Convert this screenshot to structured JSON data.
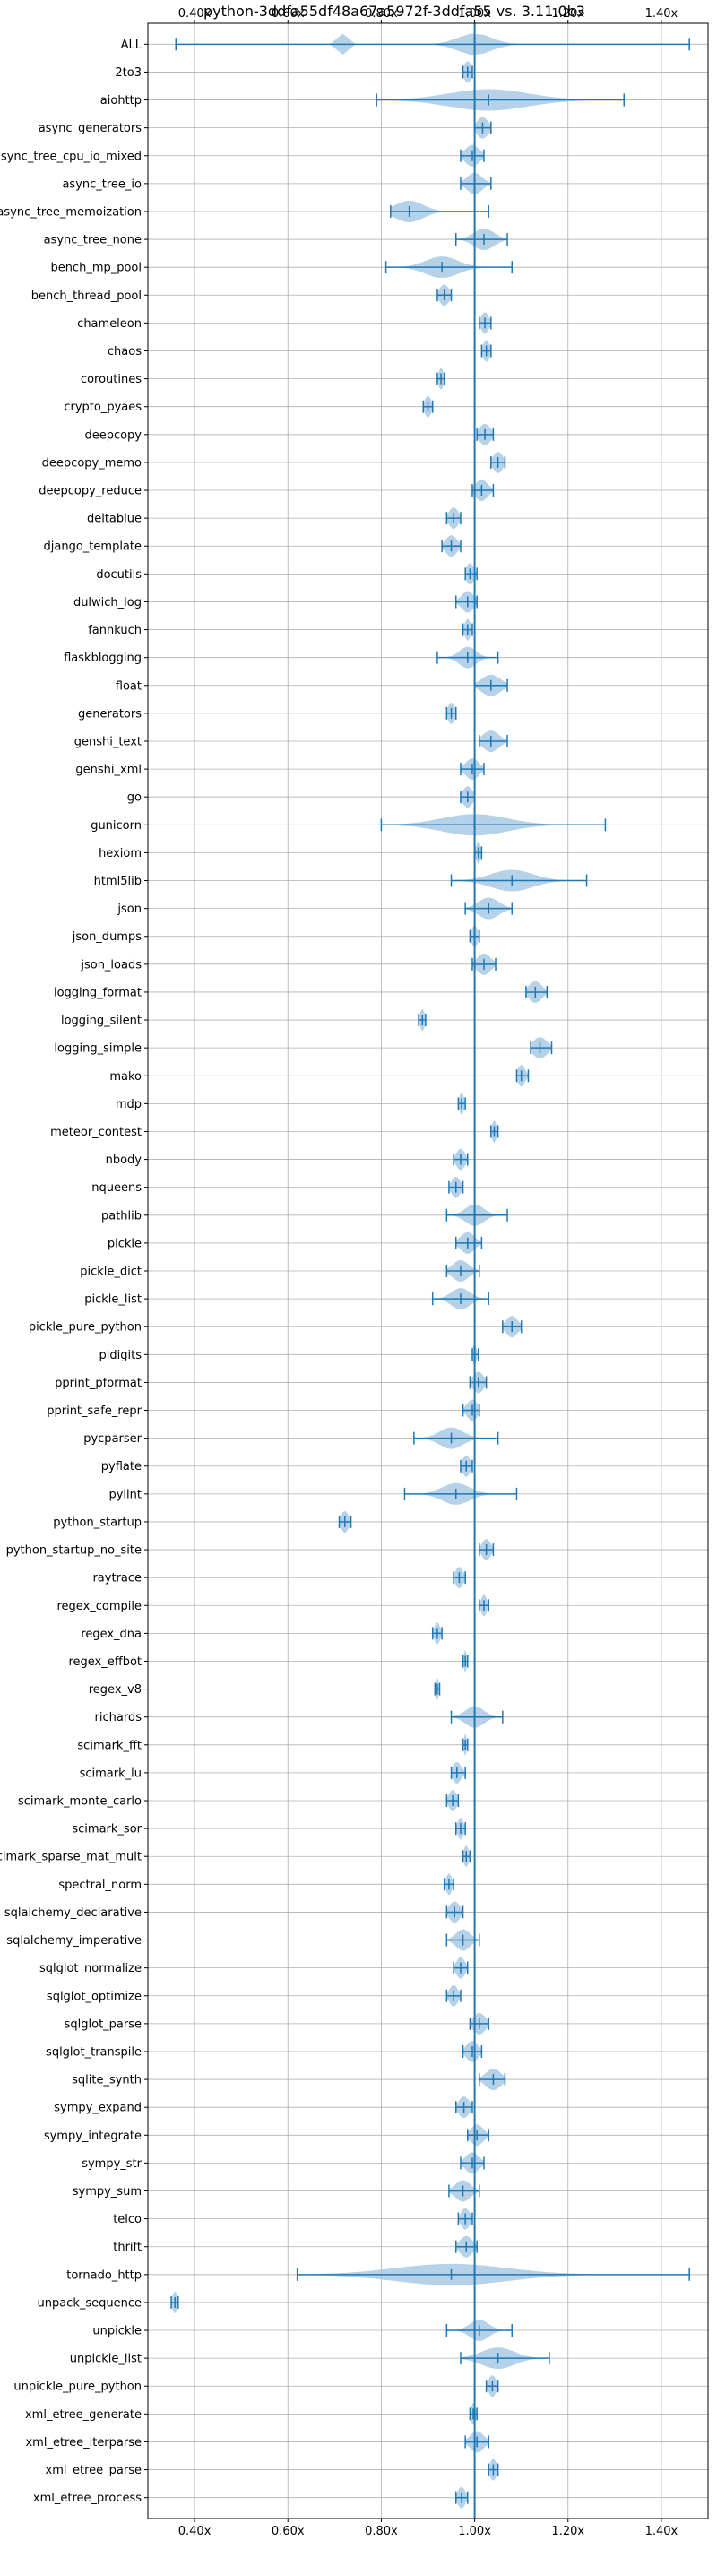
{
  "chart_data": {
    "type": "violin",
    "title": "python-3ddfa55df48a67a5972f-3ddfa55 vs. 3.11.0b3",
    "xlabel": "",
    "ylabel": "",
    "xlim": [
      0.3,
      1.5
    ],
    "x_ticks": [
      0.4,
      0.6,
      0.8,
      1.0,
      1.2,
      1.4
    ],
    "x_tick_labels": [
      "0.40x",
      "0.60x",
      "0.80x",
      "1.00x",
      "1.20x",
      "1.40x"
    ],
    "tick_axes": [
      "top",
      "bottom"
    ],
    "reference_line": 1.0,
    "grid": true,
    "colors": {
      "violin": "#9ec3e2",
      "line": "#1f77b4",
      "grid": "#b0b0b0"
    },
    "benchmarks": [
      {
        "name": "ALL",
        "min": 0.36,
        "max": 1.46,
        "median": 1.0,
        "spread": 0.025,
        "multi": [
          [
            0.72,
            0.008
          ],
          [
            1.0,
            0.035
          ]
        ]
      },
      {
        "name": "2to3",
        "min": 0.975,
        "max": 0.995,
        "median": 0.985,
        "spread": 0.008
      },
      {
        "name": "aiohttp",
        "min": 0.79,
        "max": 1.32,
        "median": 1.03,
        "spread": 0.085
      },
      {
        "name": "async_generators",
        "min": 1.0,
        "max": 1.035,
        "median": 1.017,
        "spread": 0.012
      },
      {
        "name": "async_tree_cpu_io_mixed",
        "min": 0.97,
        "max": 1.02,
        "median": 0.995,
        "spread": 0.015
      },
      {
        "name": "async_tree_io",
        "min": 0.97,
        "max": 1.035,
        "median": 1.0,
        "spread": 0.016
      },
      {
        "name": "async_tree_memoization",
        "min": 0.82,
        "max": 1.03,
        "median": 0.86,
        "spread": 0.03
      },
      {
        "name": "async_tree_none",
        "min": 0.96,
        "max": 1.07,
        "median": 1.02,
        "spread": 0.022
      },
      {
        "name": "bench_mp_pool",
        "min": 0.81,
        "max": 1.08,
        "median": 0.93,
        "spread": 0.035
      },
      {
        "name": "bench_thread_pool",
        "min": 0.92,
        "max": 0.95,
        "median": 0.935,
        "spread": 0.01
      },
      {
        "name": "chameleon",
        "min": 1.01,
        "max": 1.035,
        "median": 1.022,
        "spread": 0.008
      },
      {
        "name": "chaos",
        "min": 1.015,
        "max": 1.035,
        "median": 1.025,
        "spread": 0.007
      },
      {
        "name": "coroutines",
        "min": 0.92,
        "max": 0.935,
        "median": 0.928,
        "spread": 0.005
      },
      {
        "name": "crypto_pyaes",
        "min": 0.89,
        "max": 0.91,
        "median": 0.9,
        "spread": 0.007
      },
      {
        "name": "deepcopy",
        "min": 1.005,
        "max": 1.04,
        "median": 1.022,
        "spread": 0.012
      },
      {
        "name": "deepcopy_memo",
        "min": 1.035,
        "max": 1.065,
        "median": 1.05,
        "spread": 0.01
      },
      {
        "name": "deepcopy_reduce",
        "min": 0.995,
        "max": 1.04,
        "median": 1.015,
        "spread": 0.013
      },
      {
        "name": "deltablue",
        "min": 0.94,
        "max": 0.97,
        "median": 0.955,
        "spread": 0.01
      },
      {
        "name": "django_template",
        "min": 0.93,
        "max": 0.97,
        "median": 0.95,
        "spread": 0.012
      },
      {
        "name": "docutils",
        "min": 0.98,
        "max": 1.005,
        "median": 0.99,
        "spread": 0.008
      },
      {
        "name": "dulwich_log",
        "min": 0.96,
        "max": 1.005,
        "median": 0.985,
        "spread": 0.013
      },
      {
        "name": "fannkuch",
        "min": 0.975,
        "max": 0.995,
        "median": 0.985,
        "spread": 0.006
      },
      {
        "name": "flaskblogging",
        "min": 0.92,
        "max": 1.05,
        "median": 0.985,
        "spread": 0.018
      },
      {
        "name": "float",
        "min": 1.0,
        "max": 1.07,
        "median": 1.035,
        "spread": 0.02
      },
      {
        "name": "generators",
        "min": 0.94,
        "max": 0.96,
        "median": 0.95,
        "spread": 0.007
      },
      {
        "name": "genshi_text",
        "min": 1.01,
        "max": 1.07,
        "median": 1.035,
        "spread": 0.017
      },
      {
        "name": "genshi_xml",
        "min": 0.97,
        "max": 1.02,
        "median": 0.995,
        "spread": 0.014
      },
      {
        "name": "go",
        "min": 0.97,
        "max": 1.0,
        "median": 0.985,
        "spread": 0.01
      },
      {
        "name": "gunicorn",
        "min": 0.8,
        "max": 1.28,
        "median": 1.0,
        "spread": 0.07
      },
      {
        "name": "hexiom",
        "min": 1.0,
        "max": 1.015,
        "median": 1.008,
        "spread": 0.005
      },
      {
        "name": "html5lib",
        "min": 0.95,
        "max": 1.24,
        "median": 1.08,
        "spread": 0.045
      },
      {
        "name": "json",
        "min": 0.98,
        "max": 1.08,
        "median": 1.03,
        "spread": 0.022
      },
      {
        "name": "json_dumps",
        "min": 0.99,
        "max": 1.01,
        "median": 1.0,
        "spread": 0.007
      },
      {
        "name": "json_loads",
        "min": 0.995,
        "max": 1.045,
        "median": 1.02,
        "spread": 0.014
      },
      {
        "name": "logging_format",
        "min": 1.11,
        "max": 1.155,
        "median": 1.13,
        "spread": 0.014
      },
      {
        "name": "logging_silent",
        "min": 0.88,
        "max": 0.895,
        "median": 0.888,
        "spread": 0.005
      },
      {
        "name": "logging_simple",
        "min": 1.12,
        "max": 1.165,
        "median": 1.14,
        "spread": 0.015
      },
      {
        "name": "mako",
        "min": 1.09,
        "max": 1.115,
        "median": 1.1,
        "spread": 0.008
      },
      {
        "name": "mdp",
        "min": 0.965,
        "max": 0.98,
        "median": 0.972,
        "spread": 0.005
      },
      {
        "name": "meteor_contest",
        "min": 1.035,
        "max": 1.05,
        "median": 1.042,
        "spread": 0.005
      },
      {
        "name": "nbody",
        "min": 0.955,
        "max": 0.985,
        "median": 0.97,
        "spread": 0.009
      },
      {
        "name": "nqueens",
        "min": 0.945,
        "max": 0.975,
        "median": 0.96,
        "spread": 0.009
      },
      {
        "name": "pathlib",
        "min": 0.94,
        "max": 1.07,
        "median": 1.0,
        "spread": 0.02
      },
      {
        "name": "pickle",
        "min": 0.96,
        "max": 1.015,
        "median": 0.985,
        "spread": 0.015
      },
      {
        "name": "pickle_dict",
        "min": 0.94,
        "max": 1.01,
        "median": 0.97,
        "spread": 0.017
      },
      {
        "name": "pickle_list",
        "min": 0.91,
        "max": 1.03,
        "median": 0.97,
        "spread": 0.02
      },
      {
        "name": "pickle_pure_python",
        "min": 1.06,
        "max": 1.1,
        "median": 1.08,
        "spread": 0.012
      },
      {
        "name": "pidigits",
        "min": 0.995,
        "max": 1.008,
        "median": 1.0,
        "spread": 0.004
      },
      {
        "name": "pprint_pformat",
        "min": 0.99,
        "max": 1.025,
        "median": 1.008,
        "spread": 0.011
      },
      {
        "name": "pprint_safe_repr",
        "min": 0.975,
        "max": 1.01,
        "median": 0.995,
        "spread": 0.011
      },
      {
        "name": "pycparser",
        "min": 0.87,
        "max": 1.05,
        "median": 0.95,
        "spread": 0.025
      },
      {
        "name": "pyflate",
        "min": 0.97,
        "max": 0.995,
        "median": 0.982,
        "spread": 0.008
      },
      {
        "name": "pylint",
        "min": 0.85,
        "max": 1.09,
        "median": 0.96,
        "spread": 0.03
      },
      {
        "name": "python_startup",
        "min": 0.71,
        "max": 0.735,
        "median": 0.722,
        "spread": 0.008
      },
      {
        "name": "python_startup_no_site",
        "min": 1.01,
        "max": 1.04,
        "median": 1.025,
        "spread": 0.009
      },
      {
        "name": "raytrace",
        "min": 0.955,
        "max": 0.98,
        "median": 0.967,
        "spread": 0.008
      },
      {
        "name": "regex_compile",
        "min": 1.01,
        "max": 1.03,
        "median": 1.02,
        "spread": 0.006
      },
      {
        "name": "regex_dna",
        "min": 0.91,
        "max": 0.93,
        "median": 0.92,
        "spread": 0.006
      },
      {
        "name": "regex_effbot",
        "min": 0.975,
        "max": 0.985,
        "median": 0.98,
        "spread": 0.003
      },
      {
        "name": "regex_v8",
        "min": 0.915,
        "max": 0.925,
        "median": 0.92,
        "spread": 0.003
      },
      {
        "name": "richards",
        "min": 0.95,
        "max": 1.06,
        "median": 1.0,
        "spread": 0.02
      },
      {
        "name": "scimark_fft",
        "min": 0.975,
        "max": 0.985,
        "median": 0.98,
        "spread": 0.003
      },
      {
        "name": "scimark_lu",
        "min": 0.95,
        "max": 0.98,
        "median": 0.962,
        "spread": 0.009
      },
      {
        "name": "scimark_monte_carlo",
        "min": 0.94,
        "max": 0.965,
        "median": 0.953,
        "spread": 0.008
      },
      {
        "name": "scimark_sor",
        "min": 0.96,
        "max": 0.98,
        "median": 0.97,
        "spread": 0.006
      },
      {
        "name": "scimark_sparse_mat_mult",
        "min": 0.975,
        "max": 0.99,
        "median": 0.982,
        "spread": 0.005
      },
      {
        "name": "spectral_norm",
        "min": 0.935,
        "max": 0.955,
        "median": 0.945,
        "spread": 0.006
      },
      {
        "name": "sqlalchemy_declarative",
        "min": 0.94,
        "max": 0.975,
        "median": 0.957,
        "spread": 0.011
      },
      {
        "name": "sqlalchemy_imperative",
        "min": 0.94,
        "max": 1.01,
        "median": 0.975,
        "spread": 0.015
      },
      {
        "name": "sqlglot_normalize",
        "min": 0.955,
        "max": 0.985,
        "median": 0.97,
        "spread": 0.009
      },
      {
        "name": "sqlglot_optimize",
        "min": 0.94,
        "max": 0.97,
        "median": 0.955,
        "spread": 0.009
      },
      {
        "name": "sqlglot_parse",
        "min": 0.99,
        "max": 1.03,
        "median": 1.01,
        "spread": 0.013
      },
      {
        "name": "sqlglot_transpile",
        "min": 0.975,
        "max": 1.015,
        "median": 0.995,
        "spread": 0.012
      },
      {
        "name": "sqlite_synth",
        "min": 1.01,
        "max": 1.065,
        "median": 1.04,
        "spread": 0.016
      },
      {
        "name": "sympy_expand",
        "min": 0.96,
        "max": 0.995,
        "median": 0.977,
        "spread": 0.011
      },
      {
        "name": "sympy_integrate",
        "min": 0.985,
        "max": 1.03,
        "median": 1.005,
        "spread": 0.013
      },
      {
        "name": "sympy_str",
        "min": 0.97,
        "max": 1.02,
        "median": 0.995,
        "spread": 0.014
      },
      {
        "name": "sympy_sum",
        "min": 0.945,
        "max": 1.01,
        "median": 0.975,
        "spread": 0.016
      },
      {
        "name": "telco",
        "min": 0.965,
        "max": 0.995,
        "median": 0.98,
        "spread": 0.009
      },
      {
        "name": "thrift",
        "min": 0.96,
        "max": 1.005,
        "median": 0.982,
        "spread": 0.013
      },
      {
        "name": "tornado_http",
        "min": 0.62,
        "max": 1.46,
        "median": 0.95,
        "spread": 0.12
      },
      {
        "name": "unpack_sequence",
        "min": 0.35,
        "max": 0.365,
        "median": 0.358,
        "spread": 0.005
      },
      {
        "name": "unpickle",
        "min": 0.94,
        "max": 1.08,
        "median": 1.01,
        "spread": 0.02
      },
      {
        "name": "unpickle_list",
        "min": 0.97,
        "max": 1.16,
        "median": 1.05,
        "spread": 0.035
      },
      {
        "name": "unpickle_pure_python",
        "min": 1.025,
        "max": 1.05,
        "median": 1.038,
        "spread": 0.008
      },
      {
        "name": "xml_etree_generate",
        "min": 0.99,
        "max": 1.005,
        "median": 0.997,
        "spread": 0.005
      },
      {
        "name": "xml_etree_iterparse",
        "min": 0.98,
        "max": 1.03,
        "median": 1.005,
        "spread": 0.014
      },
      {
        "name": "xml_etree_parse",
        "min": 1.03,
        "max": 1.05,
        "median": 1.04,
        "spread": 0.007
      },
      {
        "name": "xml_etree_process",
        "min": 0.96,
        "max": 0.985,
        "median": 0.972,
        "spread": 0.008
      }
    ]
  }
}
